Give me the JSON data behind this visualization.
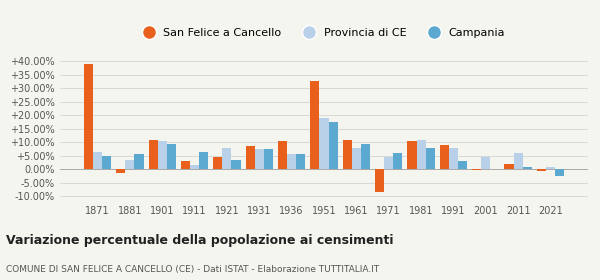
{
  "years": [
    1871,
    1881,
    1901,
    1911,
    1921,
    1931,
    1936,
    1951,
    1961,
    1971,
    1981,
    1991,
    2001,
    2011,
    2021
  ],
  "san_felice": [
    39.0,
    -1.5,
    11.0,
    3.0,
    4.5,
    8.5,
    10.5,
    32.5,
    11.0,
    -8.5,
    10.5,
    9.0,
    -0.2,
    2.0,
    -0.8
  ],
  "provincia_ce": [
    6.5,
    3.5,
    10.5,
    1.5,
    8.0,
    7.5,
    5.5,
    19.0,
    8.0,
    4.5,
    11.0,
    8.0,
    4.5,
    6.0,
    1.0
  ],
  "campania": [
    5.0,
    5.5,
    9.5,
    6.5,
    3.5,
    7.5,
    5.5,
    17.5,
    9.5,
    6.0,
    8.0,
    3.0,
    0.0,
    1.0,
    -2.5
  ],
  "color_san_felice": "#e8601c",
  "color_provincia": "#b8d0e8",
  "color_campania": "#5ba8d0",
  "title": "Variazione percentuale della popolazione ai censimenti",
  "subtitle": "COMUNE DI SAN FELICE A CANCELLO (CE) - Dati ISTAT - Elaborazione TUTTITALIA.IT",
  "ylim_min": -12,
  "ylim_max": 44,
  "yticks": [
    -10,
    -5,
    0,
    5,
    10,
    15,
    20,
    25,
    30,
    35,
    40
  ],
  "background_color": "#f5f5f0",
  "grid_color": "#cccccc"
}
